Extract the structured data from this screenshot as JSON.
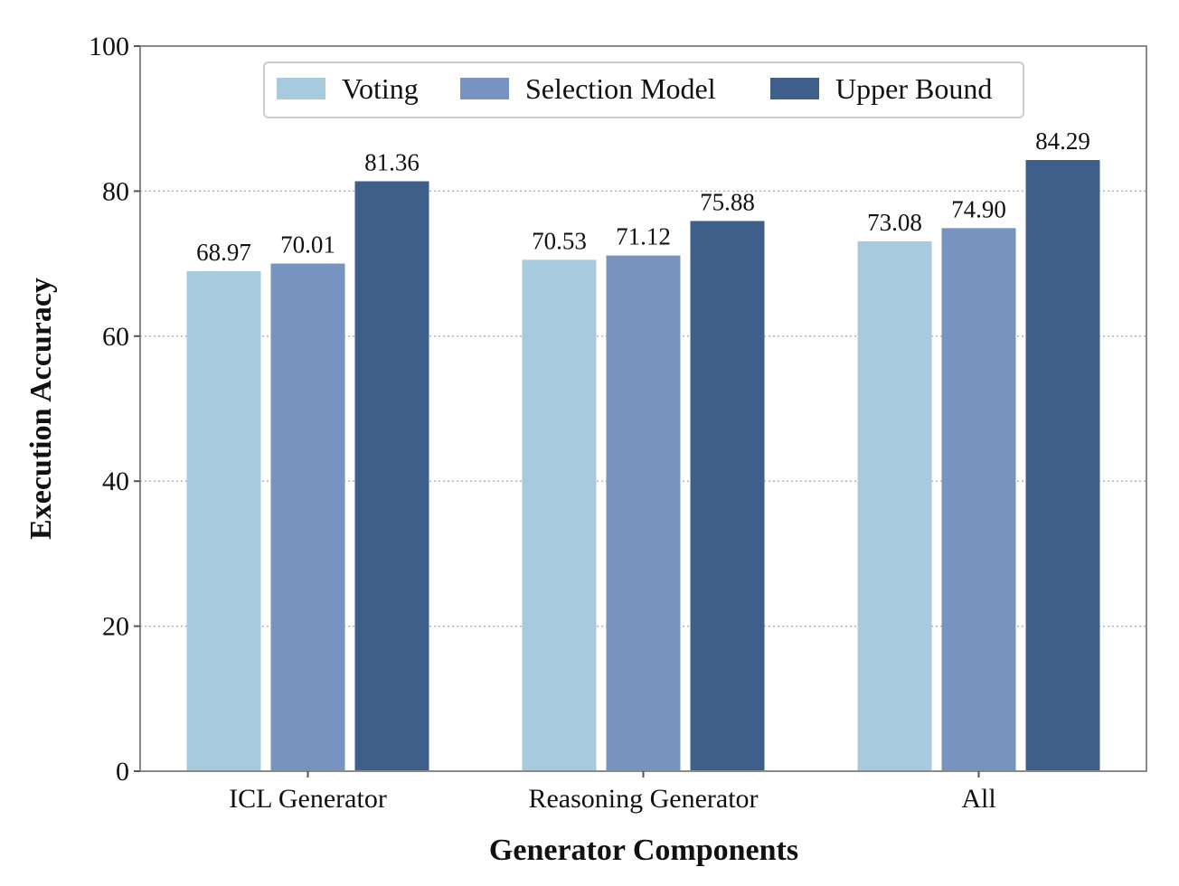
{
  "chart_data": {
    "type": "bar",
    "title": "",
    "xlabel": "Generator Components",
    "ylabel": "Execution Accuracy",
    "categories": [
      "ICL Generator",
      "Reasoning Generator",
      "All"
    ],
    "series": [
      {
        "name": "Voting",
        "color": "#a8cadf",
        "values": [
          68.97,
          70.53,
          73.08
        ],
        "labels": [
          "68.97",
          "70.53",
          "73.08"
        ]
      },
      {
        "name": "Selection Model",
        "color": "#7793bf",
        "values": [
          70.01,
          71.12,
          74.9
        ],
        "labels": [
          "70.01",
          "71.12",
          "74.90"
        ]
      },
      {
        "name": "Upper Bound",
        "color": "#3e5f8a",
        "values": [
          81.36,
          75.88,
          84.29
        ],
        "labels": [
          "81.36",
          "75.88",
          "84.29"
        ]
      }
    ],
    "ylim": [
      0,
      100
    ],
    "yticks": [
      0,
      20,
      40,
      60,
      80,
      100
    ],
    "ytick_labels": [
      "0",
      "20",
      "40",
      "60",
      "80",
      "100"
    ],
    "grid": "y-dotted",
    "legend_position": "top-center"
  }
}
